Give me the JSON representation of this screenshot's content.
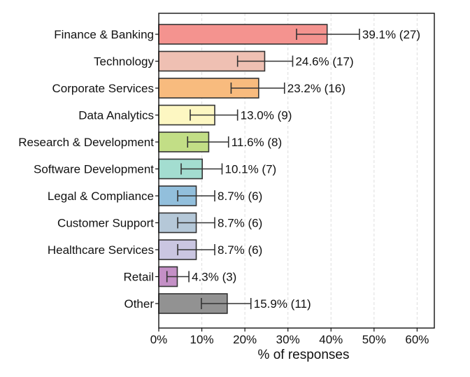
{
  "chart_data": {
    "type": "bar",
    "orientation": "horizontal",
    "title": "",
    "xlabel": "% of responses",
    "ylabel": "",
    "xlim": [
      0,
      64
    ],
    "xticks": [
      0,
      10,
      20,
      30,
      40,
      50,
      60
    ],
    "xtick_labels": [
      "0%",
      "10%",
      "20%",
      "30%",
      "40%",
      "50%",
      "60%"
    ],
    "grid": "vertical dashed",
    "categories": [
      "Finance & Banking",
      "Technology",
      "Corporate Services",
      "Data Analytics",
      "Research & Development",
      "Software Development",
      "Legal & Compliance",
      "Customer Support",
      "Healthcare Services",
      "Retail",
      "Other"
    ],
    "values": [
      39.1,
      24.6,
      23.2,
      13.0,
      11.6,
      10.1,
      8.7,
      8.7,
      8.7,
      4.3,
      15.9
    ],
    "counts": [
      27,
      17,
      16,
      9,
      8,
      7,
      6,
      6,
      6,
      3,
      11
    ],
    "error_low": [
      32.0,
      18.3,
      16.8,
      7.3,
      6.7,
      5.2,
      4.4,
      4.4,
      4.4,
      1.9,
      9.9
    ],
    "error_high": [
      46.6,
      31.1,
      29.2,
      18.3,
      16.2,
      14.7,
      13.0,
      13.0,
      13.0,
      7.0,
      21.4
    ],
    "value_labels": [
      "39.1% (27)",
      "24.6% (17)",
      "23.2% (16)",
      "13.0% (9)",
      "11.6% (8)",
      "10.1% (7)",
      "8.7% (6)",
      "8.7% (6)",
      "8.7% (6)",
      "4.3% (3)",
      "15.9% (11)"
    ],
    "colors": [
      "#f4938f",
      "#efc0b3",
      "#f8bb7e",
      "#fdf7c2",
      "#c2de86",
      "#a3ddd0",
      "#92bfdc",
      "#b5c8d8",
      "#cac6e1",
      "#c490c6",
      "#929292"
    ]
  }
}
